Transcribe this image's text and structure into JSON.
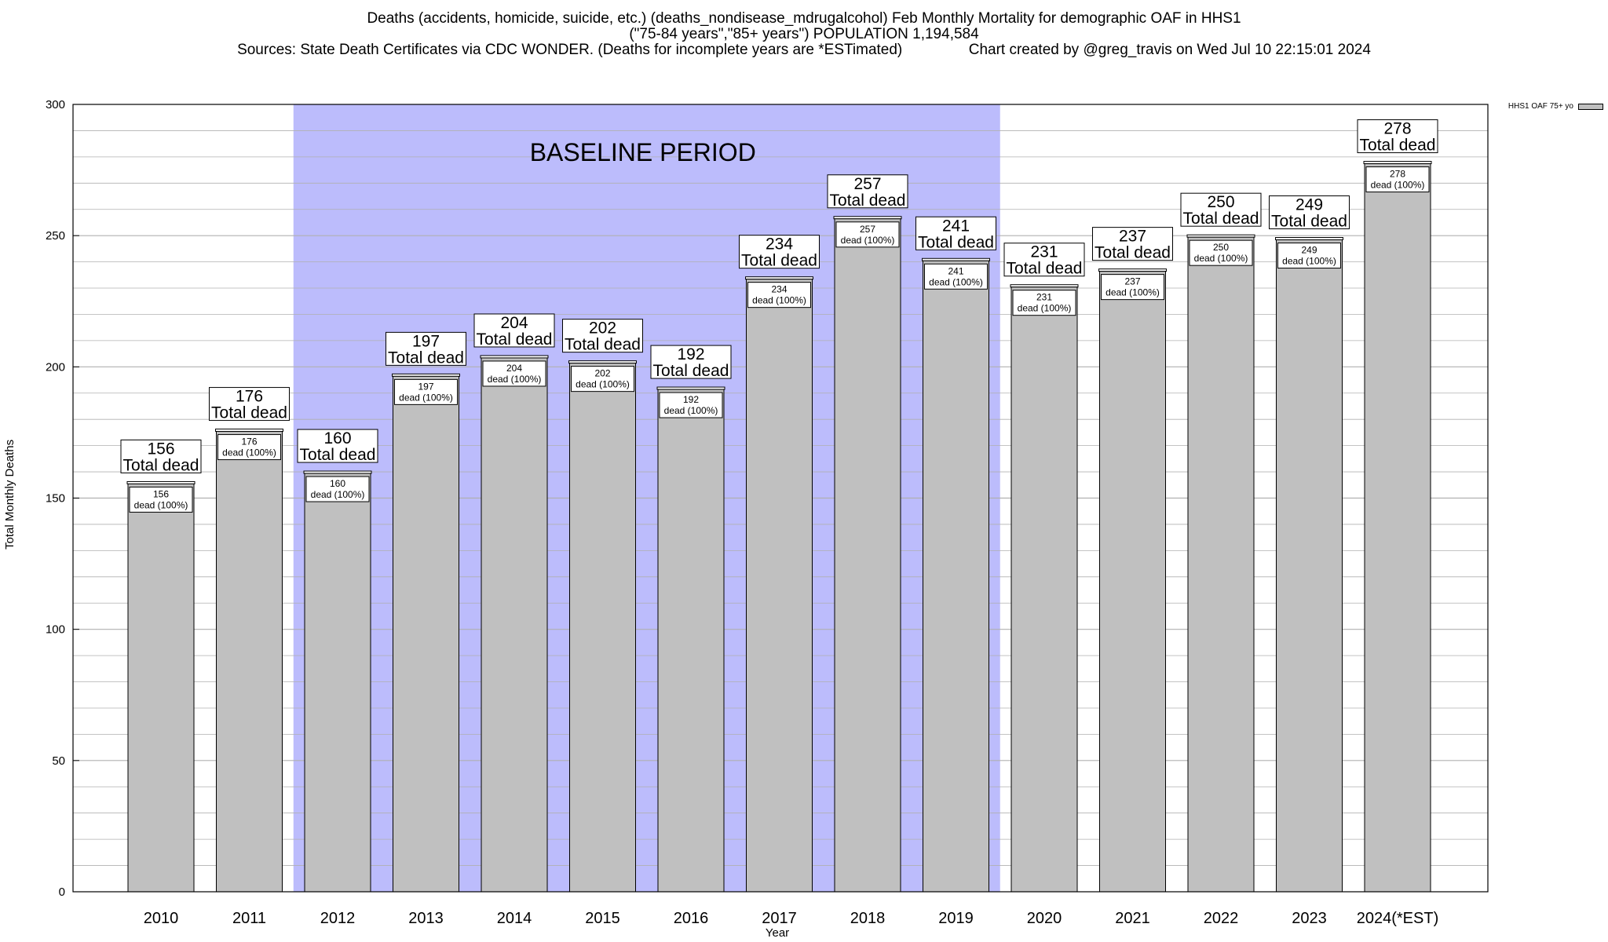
{
  "header": {
    "line1": "Deaths (accidents, homicide, suicide, etc.) (deaths_nondisease_mdrugalcohol) Feb Monthly Mortality for demographic OAF in HHS1",
    "line2": "(\"75-84 years\",\"85+ years\") POPULATION 1,194,584",
    "line3": "Sources: State Death Certificates via CDC WONDER. (Deaths for incomplete years are *ESTimated)                Chart created by @greg_travis on Wed Jul 10 22:15:01 2024"
  },
  "legend": {
    "label": "HHS1 OAF 75+ yo"
  },
  "colors": {
    "bar": "#c0c0c0",
    "baseline": "#bcbcfc",
    "grid": "#b0b0b0"
  },
  "chart_data": {
    "type": "bar",
    "categories": [
      "2010",
      "2011",
      "2012",
      "2013",
      "2014",
      "2015",
      "2016",
      "2017",
      "2018",
      "2019",
      "2020",
      "2021",
      "2022",
      "2023",
      "2024(*EST)"
    ],
    "series": [
      {
        "name": "HHS1 OAF 75+ yo",
        "values": [
          156,
          176,
          160,
          197,
          204,
          202,
          192,
          234,
          257,
          241,
          231,
          237,
          250,
          249,
          278
        ]
      }
    ],
    "title": "Deaths (accidents, homicide, suicide, etc.) (deaths_nondisease_mdrugalcohol) Feb Monthly Mortality for demographic OAF in HHS1",
    "xlabel": "Year",
    "ylabel": "Total Monthly Deaths",
    "ylim": [
      0,
      300
    ],
    "yticks": [
      0,
      50,
      100,
      150,
      200,
      250,
      300
    ],
    "grid": true,
    "legend_position": "top-right",
    "baseline": {
      "label": "BASELINE PERIOD",
      "from": "2012",
      "to": "2019"
    },
    "outer_label_suffix": "Total dead",
    "inner_label_suffix": "dead (100%)"
  }
}
